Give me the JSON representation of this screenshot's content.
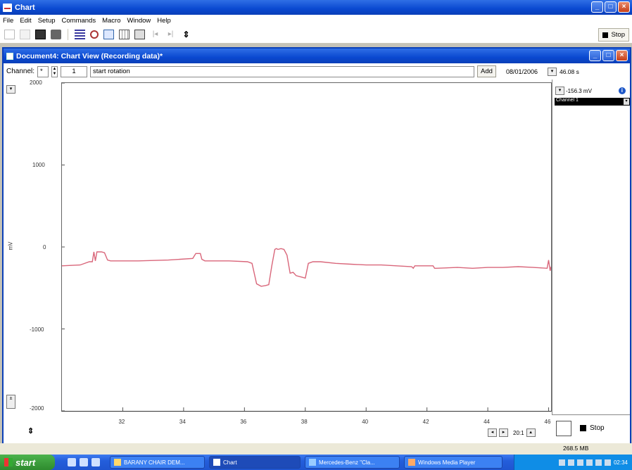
{
  "app": {
    "title": "Chart"
  },
  "menu": [
    "File",
    "Edit",
    "Setup",
    "Commands",
    "Macro",
    "Window",
    "Help"
  ],
  "toolbar": {
    "stop_label": "Stop"
  },
  "document": {
    "title": "Document4: Chart View (Recording data)*",
    "channel_label": "Channel:",
    "channel_value": "*",
    "comment_number": "1",
    "comment_text": "start rotation",
    "add_label": "Add",
    "date": "08/01/2006",
    "time_value": "46.08 s",
    "value_readout": "-156.3 mV",
    "channel_name": "Channel 1",
    "stop_label": "Stop",
    "zoom": "20:1"
  },
  "status": {
    "memory": "268.5 MB"
  },
  "taskbar": {
    "start_label": "start",
    "tasks": [
      {
        "label": "BARANY CHAIR DEM..."
      },
      {
        "label": "Chart"
      },
      {
        "label": "Mercedes-Benz \"Cla..."
      },
      {
        "label": "Windows Media Player"
      }
    ],
    "clock": "02:34"
  },
  "colors": {
    "trace": "#d9667a",
    "titlebar": "#0a48d0"
  },
  "chart_data": {
    "type": "line",
    "ylabel": "mV",
    "yticks": [
      "2000",
      "1000",
      "0",
      "-1000",
      "-2000"
    ],
    "xticks": [
      "32",
      "34",
      "36",
      "38",
      "40",
      "42",
      "44",
      "46"
    ],
    "xlim": [
      30.0,
      46.08
    ],
    "ylim": [
      -2000,
      2000
    ],
    "series": [
      {
        "x": [
          30.0,
          30.6,
          30.9,
          31.0,
          31.05,
          31.1,
          31.15,
          31.3,
          31.4,
          31.5,
          31.6,
          32.5,
          33.5,
          34.3,
          34.4,
          34.55,
          34.6,
          34.7,
          35.0,
          35.5,
          36.1,
          36.25,
          36.4,
          36.55,
          36.7,
          36.8,
          36.9,
          37.0,
          37.05,
          37.1,
          37.2,
          37.3,
          37.4,
          37.5,
          37.6,
          37.7,
          37.9,
          38.0,
          38.1,
          38.25,
          38.5,
          39.0,
          39.5,
          40.0,
          40.5,
          41.0,
          41.5,
          41.55,
          41.6,
          42.2,
          42.25,
          42.3,
          43.0,
          43.5,
          44.0,
          44.5,
          45.0,
          45.5,
          45.95,
          46.0,
          46.05,
          46.08
        ],
        "y": [
          -230,
          -220,
          -180,
          -180,
          -60,
          -170,
          -60,
          -60,
          -70,
          -160,
          -170,
          -170,
          -160,
          -140,
          -80,
          -80,
          -150,
          -170,
          -170,
          -170,
          -180,
          -200,
          -450,
          -480,
          -470,
          -460,
          -230,
          -30,
          -20,
          -30,
          -20,
          -30,
          -100,
          -320,
          -310,
          -350,
          -370,
          -380,
          -200,
          -180,
          -180,
          -200,
          -210,
          -220,
          -220,
          -230,
          -240,
          -260,
          -230,
          -230,
          -260,
          -260,
          -250,
          -260,
          -250,
          -250,
          -240,
          -250,
          -260,
          -160,
          -290,
          -240
        ]
      }
    ]
  }
}
